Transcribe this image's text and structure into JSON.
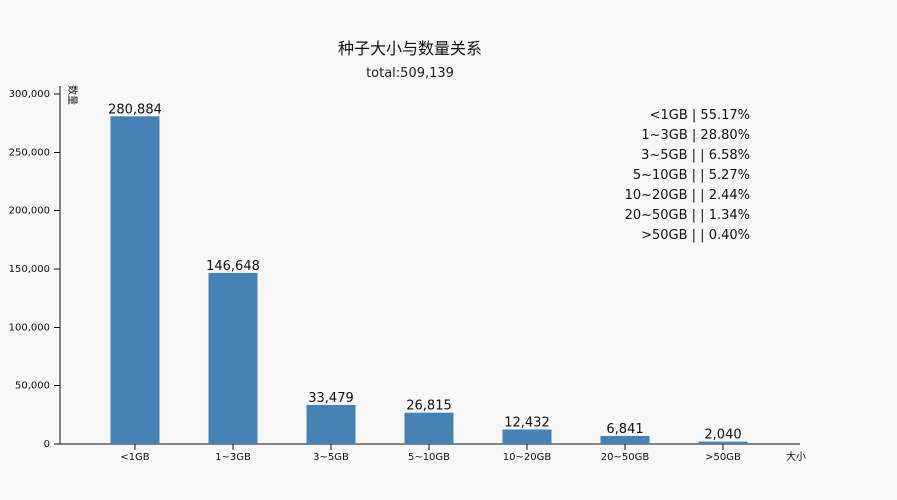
{
  "chart_data": {
    "type": "bar",
    "title": "种子大小与数量关系",
    "subtitle": "total:509,139",
    "xlabel": "大小",
    "ylabel": "数量",
    "categories": [
      "<1GB",
      "1~3GB",
      "3~5GB",
      "5~10GB",
      "10~20GB",
      "20~50GB",
      ">50GB"
    ],
    "values": [
      280884,
      146648,
      33479,
      26815,
      12432,
      6841,
      2040
    ],
    "value_labels": [
      "280,884",
      "146,648",
      "33,479",
      "26,815",
      "12,432",
      "6,841",
      "2,040"
    ],
    "ylim": [
      0,
      300000
    ],
    "yticks": [
      0,
      50000,
      100000,
      150000,
      200000,
      250000,
      300000
    ],
    "ytick_labels": [
      "0",
      "50,000",
      "100,000",
      "150,000",
      "200,000",
      "250,000",
      "300,000"
    ],
    "legend": [
      "<1GB | 55.17%",
      "1~3GB | 28.80%",
      "3~5GB | | 6.58%",
      "5~10GB | | 5.27%",
      "10~20GB | | 2.44%",
      "20~50GB | | 1.34%",
      ">50GB | | 0.40%"
    ],
    "legend_position": "top-right",
    "grid": false,
    "colors": {
      "bar": "#4682b4",
      "text": "#111111",
      "background": "#f7f7f7"
    }
  }
}
